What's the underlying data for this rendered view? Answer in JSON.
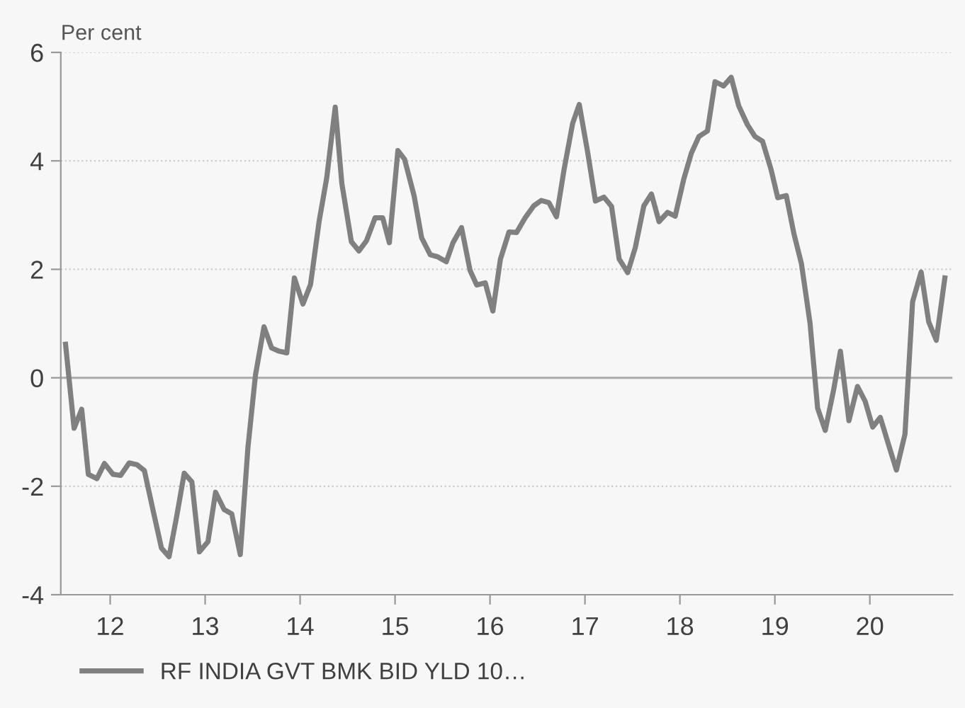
{
  "chart_data": {
    "type": "line",
    "ylabel": "Per cent",
    "xlim": [
      2011.48,
      2020.87
    ],
    "ylim": [
      -4,
      6
    ],
    "xticks": [
      {
        "value": 2012,
        "label": "12"
      },
      {
        "value": 2013,
        "label": "13"
      },
      {
        "value": 2014,
        "label": "14"
      },
      {
        "value": 2015,
        "label": "15"
      },
      {
        "value": 2016,
        "label": "16"
      },
      {
        "value": 2017,
        "label": "17"
      },
      {
        "value": 2018,
        "label": "18"
      },
      {
        "value": 2019,
        "label": "19"
      },
      {
        "value": 2020,
        "label": "20"
      }
    ],
    "yticks": [
      -4,
      -2,
      0,
      2,
      4,
      6
    ],
    "grid": "y",
    "legend": "bottom left",
    "marker": "none",
    "line_style": "solid",
    "ref_lines": [
      {
        "axis": "y",
        "value": 0,
        "color": "#b0b0b0"
      }
    ],
    "series": [
      {
        "name": "RF INDIA GVT BMK BID YLD 10…",
        "color": "#808080",
        "x": [
          2011.53,
          2011.62,
          2011.7,
          2011.77,
          2011.86,
          2011.94,
          2012.03,
          2012.11,
          2012.2,
          2012.28,
          2012.36,
          2012.45,
          2012.54,
          2012.62,
          2012.7,
          2012.78,
          2012.86,
          2012.94,
          2013.03,
          2013.11,
          2013.2,
          2013.28,
          2013.37,
          2013.45,
          2013.53,
          2013.62,
          2013.7,
          2013.78,
          2013.86,
          2013.94,
          2014.03,
          2014.11,
          2014.2,
          2014.28,
          2014.37,
          2014.44,
          2014.54,
          2014.62,
          2014.7,
          2014.79,
          2014.87,
          2014.94,
          2015.03,
          2015.1,
          2015.2,
          2015.28,
          2015.37,
          2015.45,
          2015.54,
          2015.61,
          2015.7,
          2015.79,
          2015.86,
          2015.95,
          2016.03,
          2016.11,
          2016.2,
          2016.28,
          2016.37,
          2016.46,
          2016.54,
          2016.62,
          2016.7,
          2016.78,
          2016.87,
          2016.94,
          2017.03,
          2017.11,
          2017.2,
          2017.28,
          2017.36,
          2017.45,
          2017.53,
          2017.62,
          2017.7,
          2017.78,
          2017.87,
          2017.95,
          2018.04,
          2018.12,
          2018.2,
          2018.29,
          2018.37,
          2018.46,
          2018.54,
          2018.62,
          2018.71,
          2018.79,
          2018.87,
          2018.96,
          2019.03,
          2019.12,
          2019.2,
          2019.28,
          2019.37,
          2019.45,
          2019.53,
          2019.62,
          2019.69,
          2019.78,
          2019.87,
          2019.95,
          2020.03,
          2020.11,
          2020.2,
          2020.28,
          2020.37,
          2020.45,
          2020.54,
          2020.62,
          2020.7,
          2020.79
        ],
        "values": [
          0.62,
          -0.93,
          -0.58,
          -1.78,
          -1.86,
          -1.58,
          -1.78,
          -1.8,
          -1.57,
          -1.6,
          -1.71,
          -2.43,
          -3.14,
          -3.3,
          -2.56,
          -1.76,
          -1.92,
          -3.21,
          -3.02,
          -2.11,
          -2.43,
          -2.51,
          -3.26,
          -1.3,
          0.05,
          0.94,
          0.55,
          0.49,
          0.46,
          1.84,
          1.36,
          1.72,
          2.88,
          3.68,
          4.99,
          3.58,
          2.51,
          2.34,
          2.53,
          2.95,
          2.95,
          2.49,
          4.19,
          4.03,
          3.36,
          2.58,
          2.27,
          2.23,
          2.14,
          2.49,
          2.77,
          1.98,
          1.71,
          1.75,
          1.23,
          2.19,
          2.69,
          2.68,
          2.95,
          3.17,
          3.27,
          3.23,
          2.97,
          3.84,
          4.69,
          5.04,
          4.14,
          3.26,
          3.33,
          3.16,
          2.19,
          1.94,
          2.4,
          3.17,
          3.39,
          2.88,
          3.05,
          2.98,
          3.66,
          4.14,
          4.45,
          4.55,
          5.46,
          5.38,
          5.54,
          5.01,
          4.67,
          4.45,
          4.36,
          3.84,
          3.32,
          3.36,
          2.66,
          2.1,
          1.01,
          -0.56,
          -0.97,
          -0.21,
          0.49,
          -0.79,
          -0.16,
          -0.43,
          -0.91,
          -0.73,
          -1.25,
          -1.7,
          -1.04,
          1.4,
          1.95,
          1.03,
          0.69,
          1.84
        ]
      }
    ]
  }
}
